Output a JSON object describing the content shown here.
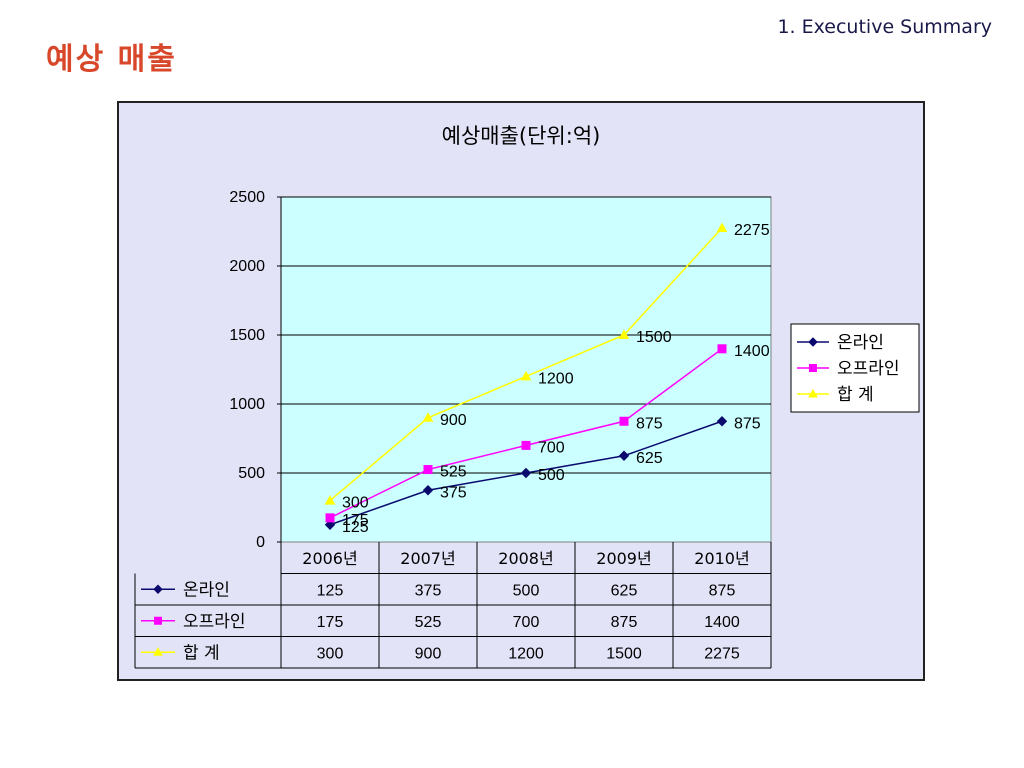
{
  "header": {
    "section": "1. Executive Summary",
    "title": "예상 매출"
  },
  "chart_data": {
    "type": "line",
    "title": "예상매출(단위:억)",
    "categories": [
      "2006년",
      "2007년",
      "2008년",
      "2009년",
      "2010년"
    ],
    "ylim": [
      0,
      2500
    ],
    "yticks": [
      0,
      500,
      1000,
      1500,
      2000,
      2500
    ],
    "grid": true,
    "legend": "right",
    "data_table": true,
    "series": [
      {
        "name": "온라인",
        "values": [
          125,
          375,
          500,
          625,
          875
        ],
        "color": "#0a0a6e",
        "marker": "diamond"
      },
      {
        "name": "오프라인",
        "values": [
          175,
          525,
          700,
          875,
          1400
        ],
        "color": "#ff00ff",
        "marker": "square"
      },
      {
        "name": "합 계",
        "values": [
          300,
          900,
          1200,
          1500,
          2275
        ],
        "color": "#ffff00",
        "marker": "triangle"
      }
    ]
  },
  "colors": {
    "plot_background": "#ccffff",
    "chart_background": "#e3e3f8",
    "title_accent": "#d8472a"
  }
}
